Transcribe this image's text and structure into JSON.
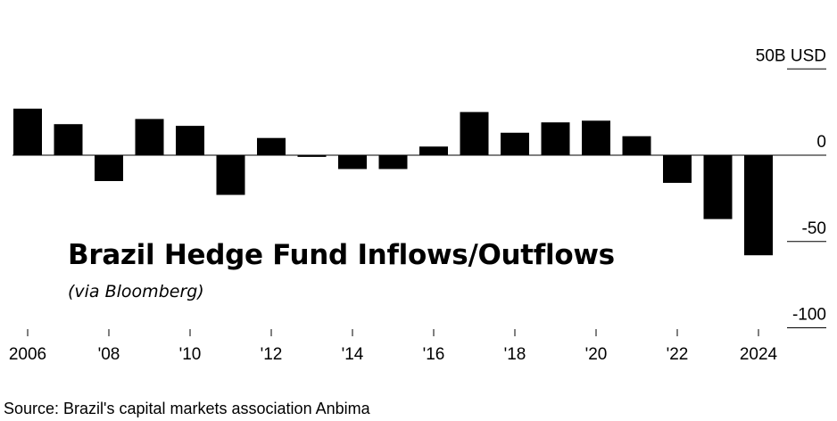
{
  "chart_data": {
    "type": "bar",
    "title": "Brazil Hedge Fund Inflows/Outflows",
    "subtitle": "(via Bloomberg)",
    "source": "Source: Brazil's capital markets association Anbima",
    "unit_label": "50B USD",
    "categories": [
      "2006",
      "2007",
      "2008",
      "2009",
      "2010",
      "2011",
      "2012",
      "2013",
      "2014",
      "2015",
      "2016",
      "2017",
      "2018",
      "2019",
      "2020",
      "2021",
      "2022",
      "2023",
      "2024"
    ],
    "values": [
      27,
      18,
      -15,
      21,
      17,
      -23,
      10,
      -1,
      -8,
      -8,
      5,
      25,
      13,
      19,
      20,
      11,
      -16,
      -37,
      -58
    ],
    "x_tick_labels": [
      "2006",
      "'08",
      "'10",
      "'12",
      "'14",
      "'16",
      "'18",
      "'20",
      "'22",
      "2024"
    ],
    "x_tick_years": [
      "2006",
      "2008",
      "2010",
      "2012",
      "2014",
      "2016",
      "2018",
      "2020",
      "2022",
      "2024"
    ],
    "y_ticks": [
      {
        "value": 50,
        "label": "50B USD"
      },
      {
        "value": 0,
        "label": "0"
      },
      {
        "value": -50,
        "label": "-50"
      },
      {
        "value": -100,
        "label": "-100"
      }
    ],
    "ylim": [
      -100,
      50
    ],
    "bar_color": "#000000",
    "grid": false
  }
}
